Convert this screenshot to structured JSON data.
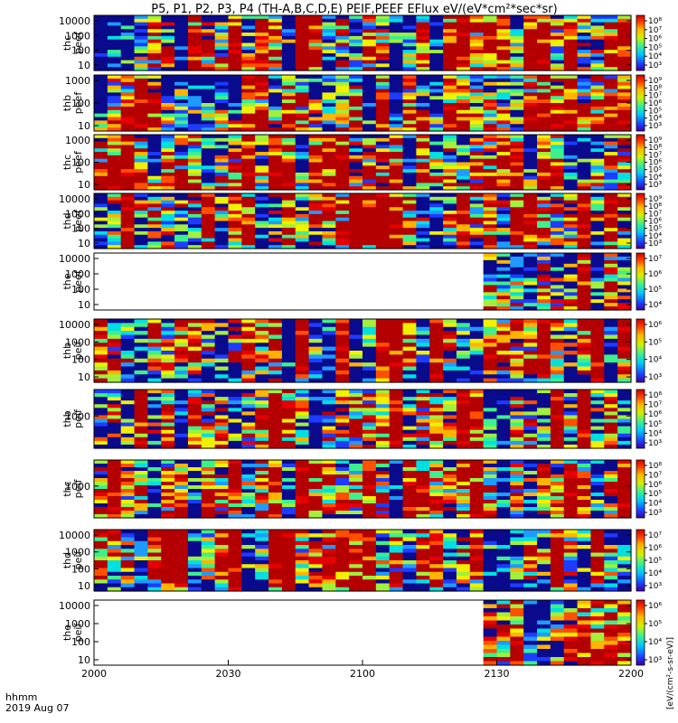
{
  "chart_data": {
    "type": "heatmap",
    "title": "P5, P1, P2, P3, P4 (TH-A,B,C,D,E) PEIF,PEEF EFlux eV/(eV*cm²*sec*sr)",
    "x_axis": {
      "tick_labels": [
        "2000",
        "2030",
        "2100",
        "2130",
        "2200"
      ],
      "header_labels": [
        "hhmm",
        "2019 Aug 07"
      ]
    },
    "colorbar_unit": "[eV/(cm²-s-sr-eV)]",
    "panels": [
      {
        "name": [
          "thc",
          "peef"
        ],
        "y_ticks": [
          "10000",
          "1000",
          "100",
          "10"
        ],
        "cbar_ticks": [
          "10⁸",
          "10⁷",
          "10⁶",
          "10⁵",
          "10⁴",
          "10³"
        ],
        "hot": 0.45,
        "cool": 0.25,
        "coverage": [
          0.0,
          1.0
        ]
      },
      {
        "name": [
          "thb",
          "peef"
        ],
        "y_ticks": [
          "1000",
          "100",
          "10"
        ],
        "cbar_ticks": [
          "10⁹",
          "10⁸",
          "10⁷",
          "10⁶",
          "10⁵",
          "10⁴",
          "10³"
        ],
        "hot": 0.85,
        "cool": 0.05,
        "coverage": [
          0.0,
          1.0
        ]
      },
      {
        "name": [
          "thc",
          "peef"
        ],
        "y_ticks": [
          "1000",
          "100",
          "10"
        ],
        "cbar_ticks": [
          "10⁹",
          "10⁸",
          "10⁷",
          "10⁶",
          "10⁵",
          "10⁴",
          "10³"
        ],
        "hot": 0.75,
        "cool": 0.2,
        "coverage": [
          0.0,
          1.0
        ]
      },
      {
        "name": [
          "thd",
          "peef"
        ],
        "y_ticks": [
          "10000",
          "1000",
          "100",
          "10"
        ],
        "cbar_ticks": [
          "10⁹",
          "10⁸",
          "10⁷",
          "10⁶",
          "10⁵",
          "10⁴",
          "10³"
        ],
        "hot": 0.35,
        "cool": 0.55,
        "coverage": [
          0.0,
          1.0
        ]
      },
      {
        "name": [
          "the",
          "peef"
        ],
        "y_ticks": [
          "10000",
          "1000",
          "100",
          "10"
        ],
        "cbar_ticks": [
          "10⁷",
          "10⁶",
          "10⁵",
          "10⁴"
        ],
        "hot": 0.7,
        "cool": 0.15,
        "coverage": [
          0.744,
          1.0
        ]
      },
      {
        "name": [
          "thb",
          "peif"
        ],
        "y_ticks": [
          "10000",
          "1000",
          "100",
          "10"
        ],
        "cbar_ticks": [
          "10⁶",
          "10⁵",
          "10⁴",
          "10³"
        ],
        "hot": 0.15,
        "cool": 0.55,
        "coverage": [
          0.0,
          1.0
        ]
      },
      {
        "name": [
          "thb",
          "peif"
        ],
        "y_ticks": [
          "1000"
        ],
        "cbar_ticks": [
          "10⁸",
          "10⁷",
          "10⁶",
          "10⁵",
          "10⁴",
          "10³"
        ],
        "hot": 0.55,
        "cool": 0.45,
        "coverage": [
          0.0,
          1.0
        ]
      },
      {
        "name": [
          "thc",
          "peif"
        ],
        "y_ticks": [
          "1000"
        ],
        "cbar_ticks": [
          "10⁸",
          "10⁷",
          "10⁶",
          "10⁵",
          "10⁴",
          "10³"
        ],
        "hot": 0.5,
        "cool": 0.45,
        "coverage": [
          0.0,
          1.0
        ]
      },
      {
        "name": [
          "thd",
          "peif"
        ],
        "y_ticks": [
          "10000",
          "1000",
          "100",
          "10"
        ],
        "cbar_ticks": [
          "10⁷",
          "10⁶",
          "10⁵",
          "10⁴",
          "10³"
        ],
        "hot": 0.2,
        "cool": 0.5,
        "coverage": [
          0.0,
          1.0
        ]
      },
      {
        "name": [
          "the",
          "peif"
        ],
        "y_ticks": [
          "10000",
          "1000",
          "100",
          "10"
        ],
        "cbar_ticks": [
          "10⁶",
          "10⁵",
          "10⁴",
          "10³"
        ],
        "hot": 0.55,
        "cool": 0.25,
        "coverage": [
          0.744,
          1.0
        ]
      }
    ],
    "grid": false,
    "legend": "colorbars-right"
  },
  "colors": {
    "palette": [
      "#0a0a8c",
      "#1e3cff",
      "#1e9bff",
      "#00e0e0",
      "#3cf08c",
      "#a0f03c",
      "#f0f000",
      "#ffb400",
      "#ff5000",
      "#e60000",
      "#b40000"
    ]
  }
}
